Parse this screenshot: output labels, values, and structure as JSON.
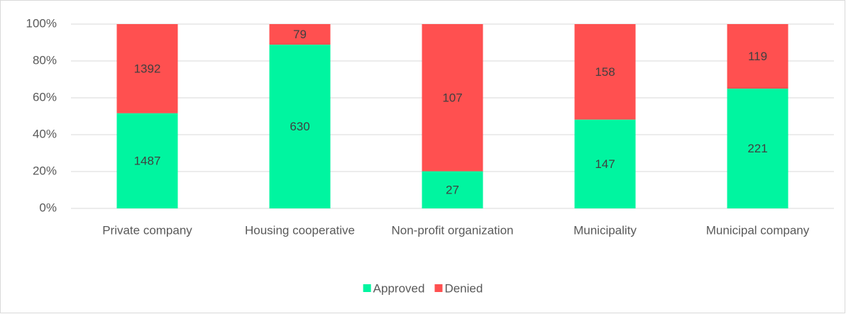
{
  "chart_data": {
    "type": "bar",
    "stacking": "percent",
    "categories": [
      "Private company",
      "Housing cooperative",
      "Non-profit organization",
      "Municipality",
      "Municipal company"
    ],
    "series": [
      {
        "name": "Approved",
        "color": "#00f5a0",
        "values": [
          1487,
          630,
          27,
          147,
          221
        ]
      },
      {
        "name": "Denied",
        "color": "#ff5050",
        "values": [
          1392,
          79,
          107,
          158,
          119
        ]
      }
    ],
    "ylim": [
      0,
      100
    ],
    "yticks": [
      {
        "value": 0,
        "label": "0%"
      },
      {
        "value": 20,
        "label": "20%"
      },
      {
        "value": 40,
        "label": "40%"
      },
      {
        "value": 60,
        "label": "60%"
      },
      {
        "value": 80,
        "label": "80%"
      },
      {
        "value": 100,
        "label": "100%"
      }
    ],
    "grid": true,
    "legend": "bottom"
  }
}
